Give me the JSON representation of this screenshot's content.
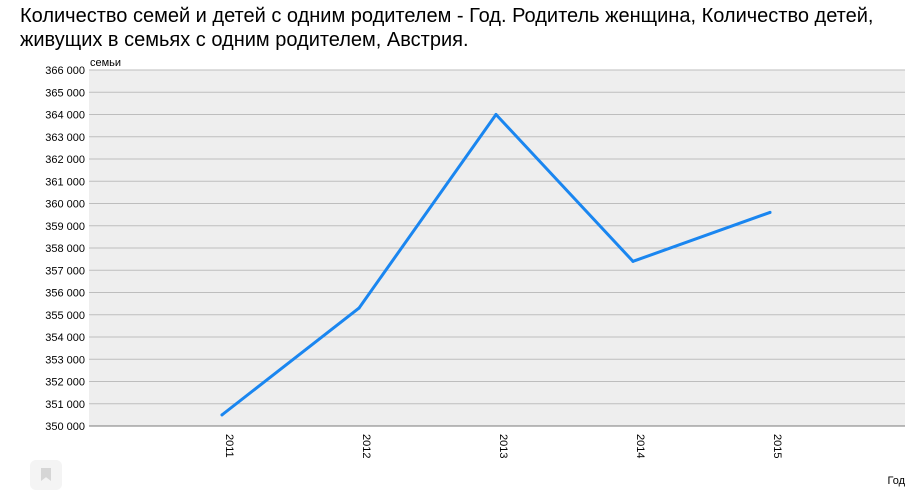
{
  "title": "Количество семей и детей с одним родителем - Год. Родитель женщина, Количество детей, живущих в семьях с одним родителем, Австрия.",
  "icons": {
    "bookmark": "bookmark-icon"
  },
  "colors": {
    "line": "#1a86f0",
    "plot_background": "#eeeeee",
    "grid": "#bdbdbd"
  },
  "chart_data": {
    "type": "line",
    "title": "Количество семей и детей с одним родителем - Год. Родитель женщина, Количество детей, живущих в семьях с одним родителем, Австрия.",
    "xlabel": "Год",
    "ylabel": "семьи",
    "categories": [
      "2011",
      "2012",
      "2013",
      "2014",
      "2015"
    ],
    "series": [
      {
        "values": [
          350500,
          355300,
          364000,
          357400,
          359600
        ]
      }
    ],
    "ylim": [
      350000,
      366000
    ],
    "yticks": [
      350000,
      351000,
      352000,
      353000,
      354000,
      355000,
      356000,
      357000,
      358000,
      359000,
      360000,
      361000,
      362000,
      363000,
      364000,
      365000,
      366000
    ],
    "ytick_labels": [
      "350 000",
      "351 000",
      "352 000",
      "353 000",
      "354 000",
      "355 000",
      "356 000",
      "357 000",
      "358 000",
      "359 000",
      "360 000",
      "361 000",
      "362 000",
      "363 000",
      "364 000",
      "365 000",
      "366 000"
    ],
    "grid": true,
    "legend": "none"
  }
}
